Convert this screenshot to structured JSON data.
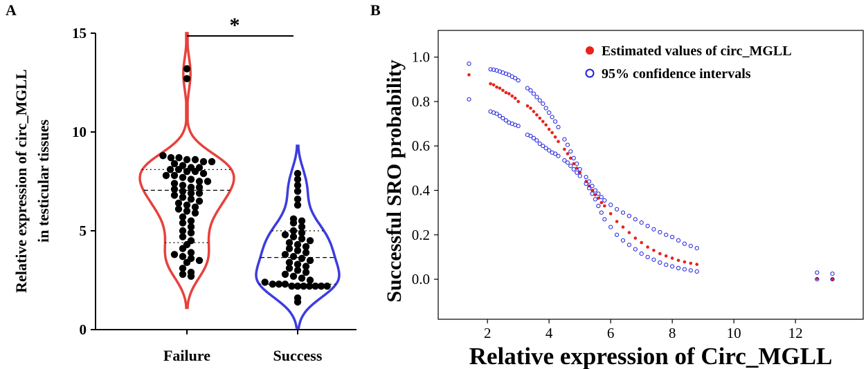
{
  "panel_labels": {
    "a": "A",
    "b": "B"
  },
  "chart_data": [
    {
      "type": "violin",
      "panel": "A",
      "ylabel_line1": "Relative expression of circ_MGLL",
      "ylabel_line2": "in testicular tissues",
      "ylim": [
        0,
        15
      ],
      "yticks": [
        0,
        5,
        10,
        15
      ],
      "ytick_labels": [
        "0",
        "5",
        "10",
        "15"
      ],
      "categories": [
        "Failure",
        "Success"
      ],
      "significance": "*",
      "colors": {
        "Failure": "#e8413c",
        "Success": "#3c3ce0",
        "points": "#000000"
      },
      "series": [
        {
          "name": "Failure",
          "color": "#e8413c",
          "range": [
            1.1,
            15.0
          ],
          "median": 7.05,
          "quartiles": [
            4.4,
            8.1
          ],
          "values": [
            13.2,
            12.7,
            8.8,
            8.7,
            8.7,
            8.6,
            8.6,
            8.5,
            8.5,
            8.4,
            8.3,
            8.2,
            8.2,
            8.1,
            8.1,
            8.0,
            8.0,
            7.9,
            7.8,
            7.8,
            7.7,
            7.6,
            7.5,
            7.5,
            7.4,
            7.3,
            7.2,
            7.2,
            7.1,
            7.0,
            6.9,
            6.9,
            6.8,
            6.7,
            6.6,
            6.5,
            6.4,
            6.3,
            6.2,
            6.1,
            6.0,
            5.9,
            5.7,
            5.5,
            5.4,
            5.2,
            5.0,
            4.9,
            4.7,
            4.5,
            4.3,
            4.1,
            3.9,
            3.8,
            3.7,
            3.6,
            3.5,
            3.4,
            3.1,
            2.9,
            2.8,
            2.7
          ]
        },
        {
          "name": "Success",
          "color": "#3c3ce0",
          "range": [
            0.1,
            9.3
          ],
          "median": 3.65,
          "quartiles": [
            2.3,
            5.0
          ],
          "values": [
            7.9,
            7.6,
            7.3,
            7.0,
            6.6,
            6.3,
            5.6,
            5.5,
            5.4,
            5.2,
            5.0,
            4.9,
            4.8,
            4.7,
            4.6,
            4.5,
            4.4,
            4.3,
            4.2,
            4.1,
            4.0,
            3.9,
            3.8,
            3.7,
            3.6,
            3.5,
            3.4,
            3.3,
            3.2,
            3.1,
            3.0,
            2.9,
            2.8,
            2.7,
            2.6,
            2.5,
            2.4,
            2.3,
            2.3,
            2.3,
            2.2,
            2.2,
            2.2,
            2.2,
            2.2,
            2.2,
            2.2,
            1.6,
            1.4
          ]
        }
      ]
    },
    {
      "type": "scatter",
      "panel": "B",
      "xlabel": "Relative expression of Circ_MGLL",
      "ylabel": "Successful SRO probability",
      "xlim": [
        0.4,
        14.2
      ],
      "ylim": [
        -0.18,
        1.12
      ],
      "xticks": [
        2,
        4,
        6,
        8,
        10,
        12
      ],
      "xtick_labels": [
        "2",
        "4",
        "6",
        "8",
        "10",
        "12"
      ],
      "yticks": [
        0.0,
        0.2,
        0.4,
        0.6,
        0.8,
        1.0
      ],
      "ytick_labels": [
        "0.0",
        "0.2",
        "0.4",
        "0.6",
        "0.8",
        "1.0"
      ],
      "legend_position": "top-right",
      "legend": [
        {
          "label": "Estimated values of circ_MGLL",
          "marker": "filled-circle",
          "color": "#e8221c"
        },
        {
          "label": "95% confidence intervals",
          "marker": "open-circle",
          "color": "#2020e0"
        }
      ],
      "series": [
        {
          "name": "Estimated values of circ_MGLL",
          "marker": "filled",
          "color": "#e8221c",
          "x": [
            1.4,
            2.1,
            2.2,
            2.3,
            2.4,
            2.5,
            2.6,
            2.7,
            2.8,
            2.9,
            3.0,
            3.3,
            3.4,
            3.5,
            3.6,
            3.7,
            3.8,
            3.9,
            4.0,
            4.1,
            4.2,
            4.3,
            4.5,
            4.6,
            4.7,
            4.8,
            4.9,
            5.0,
            5.2,
            5.3,
            5.4,
            5.5,
            5.6,
            5.7,
            5.8,
            6.0,
            6.2,
            6.4,
            6.6,
            6.8,
            7.0,
            7.2,
            7.4,
            7.6,
            7.8,
            8.0,
            8.2,
            8.4,
            8.6,
            8.8,
            12.7,
            13.2
          ],
          "y": [
            0.92,
            0.88,
            0.875,
            0.865,
            0.86,
            0.85,
            0.84,
            0.835,
            0.825,
            0.815,
            0.8,
            0.78,
            0.77,
            0.755,
            0.74,
            0.725,
            0.71,
            0.695,
            0.675,
            0.66,
            0.64,
            0.62,
            0.585,
            0.565,
            0.545,
            0.52,
            0.5,
            0.48,
            0.44,
            0.42,
            0.4,
            0.38,
            0.365,
            0.345,
            0.33,
            0.295,
            0.26,
            0.235,
            0.21,
            0.185,
            0.165,
            0.145,
            0.13,
            0.115,
            0.105,
            0.095,
            0.085,
            0.078,
            0.072,
            0.067,
            0.003,
            0.0
          ]
        },
        {
          "name": "95% confidence intervals (upper)",
          "marker": "open",
          "color": "#2020e0",
          "x": [
            1.4,
            2.1,
            2.2,
            2.3,
            2.4,
            2.5,
            2.6,
            2.7,
            2.8,
            2.9,
            3.0,
            3.3,
            3.4,
            3.5,
            3.6,
            3.7,
            3.8,
            3.9,
            4.0,
            4.1,
            4.2,
            4.3,
            4.5,
            4.6,
            4.7,
            4.8,
            4.9,
            5.0,
            5.2,
            5.3,
            5.4,
            5.5,
            5.6,
            5.7,
            5.8,
            6.0,
            6.2,
            6.4,
            6.6,
            6.8,
            7.0,
            7.2,
            7.4,
            7.6,
            7.8,
            8.0,
            8.2,
            8.4,
            8.6,
            8.8,
            12.7,
            13.2
          ],
          "y": [
            0.97,
            0.945,
            0.943,
            0.94,
            0.935,
            0.93,
            0.925,
            0.92,
            0.912,
            0.905,
            0.895,
            0.86,
            0.85,
            0.835,
            0.82,
            0.805,
            0.79,
            0.77,
            0.75,
            0.73,
            0.71,
            0.685,
            0.63,
            0.605,
            0.575,
            0.545,
            0.52,
            0.495,
            0.46,
            0.44,
            0.42,
            0.4,
            0.385,
            0.37,
            0.355,
            0.335,
            0.315,
            0.3,
            0.285,
            0.27,
            0.255,
            0.24,
            0.225,
            0.212,
            0.2,
            0.19,
            0.175,
            0.16,
            0.15,
            0.14,
            0.03,
            0.025
          ]
        },
        {
          "name": "95% confidence intervals (lower)",
          "marker": "open",
          "color": "#2020e0",
          "x": [
            1.4,
            2.1,
            2.2,
            2.3,
            2.4,
            2.5,
            2.6,
            2.7,
            2.8,
            2.9,
            3.0,
            3.3,
            3.4,
            3.5,
            3.6,
            3.7,
            3.8,
            3.9,
            4.0,
            4.1,
            4.2,
            4.3,
            4.5,
            4.6,
            4.7,
            4.8,
            4.9,
            5.0,
            5.2,
            5.3,
            5.4,
            5.5,
            5.6,
            5.7,
            5.8,
            6.0,
            6.2,
            6.4,
            6.6,
            6.8,
            7.0,
            7.2,
            7.4,
            7.6,
            7.8,
            8.0,
            8.2,
            8.4,
            8.6,
            8.8,
            12.7,
            13.2
          ],
          "y": [
            0.81,
            0.755,
            0.75,
            0.745,
            0.735,
            0.725,
            0.715,
            0.705,
            0.7,
            0.695,
            0.69,
            0.65,
            0.645,
            0.635,
            0.625,
            0.61,
            0.6,
            0.59,
            0.58,
            0.57,
            0.565,
            0.555,
            0.535,
            0.525,
            0.51,
            0.495,
            0.48,
            0.465,
            0.43,
            0.41,
            0.385,
            0.36,
            0.33,
            0.3,
            0.27,
            0.235,
            0.2,
            0.175,
            0.155,
            0.135,
            0.115,
            0.1,
            0.088,
            0.075,
            0.065,
            0.058,
            0.05,
            0.045,
            0.04,
            0.035,
            0.0,
            0.0
          ]
        }
      ]
    }
  ]
}
